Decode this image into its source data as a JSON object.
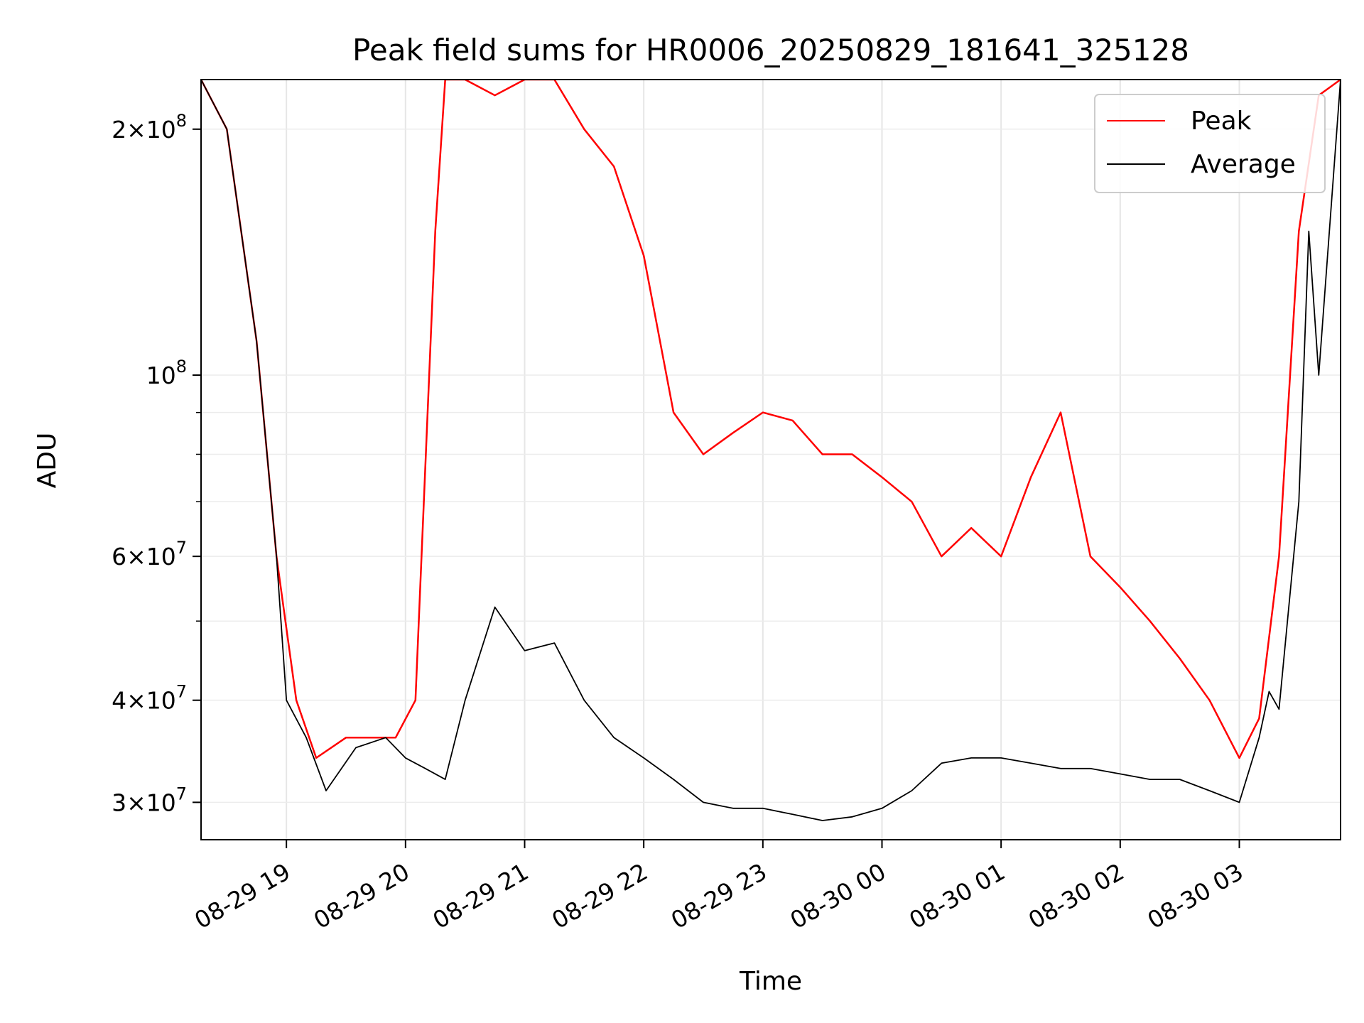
{
  "chart_data": {
    "type": "line",
    "title": "Peak field sums for HR0006_20250829_181641_325128",
    "xlabel": "Time",
    "ylabel": "ADU",
    "yscale": "log",
    "ylim": [
      27000000,
      230000000
    ],
    "xlim": [
      "2025-08-29 18:17",
      "2025-08-30 03:51"
    ],
    "grid": true,
    "legend_position": "top-right",
    "x_ticks": [
      "08-29 19",
      "08-29 20",
      "08-29 21",
      "08-29 22",
      "08-29 23",
      "08-30 00",
      "08-30 01",
      "08-30 02",
      "08-30 03"
    ],
    "y_ticks": [
      {
        "value": 30000000,
        "mantissa": "3",
        "exponent": "7"
      },
      {
        "value": 40000000,
        "mantissa": "4",
        "exponent": "7"
      },
      {
        "value": 60000000,
        "mantissa": "6",
        "exponent": "7"
      },
      {
        "value": 100000000,
        "mantissa": "",
        "exponent": "8"
      },
      {
        "value": 200000000,
        "mantissa": "2",
        "exponent": "8"
      }
    ],
    "series": [
      {
        "name": "Peak",
        "color": "#ff0000",
        "x": [
          "2025-08-29 18:17",
          "2025-08-29 18:30",
          "2025-08-29 18:45",
          "2025-08-29 18:55",
          "2025-08-29 19:05",
          "2025-08-29 19:15",
          "2025-08-29 19:30",
          "2025-08-29 19:45",
          "2025-08-29 19:55",
          "2025-08-29 20:05",
          "2025-08-29 20:15",
          "2025-08-29 20:20",
          "2025-08-29 20:30",
          "2025-08-29 20:45",
          "2025-08-29 21:00",
          "2025-08-29 21:15",
          "2025-08-29 21:30",
          "2025-08-29 21:45",
          "2025-08-29 22:00",
          "2025-08-29 22:15",
          "2025-08-29 22:30",
          "2025-08-29 22:45",
          "2025-08-29 23:00",
          "2025-08-29 23:15",
          "2025-08-29 23:30",
          "2025-08-29 23:45",
          "2025-08-30 00:00",
          "2025-08-30 00:15",
          "2025-08-30 00:30",
          "2025-08-30 00:45",
          "2025-08-30 01:00",
          "2025-08-30 01:15",
          "2025-08-30 01:30",
          "2025-08-30 01:45",
          "2025-08-30 02:00",
          "2025-08-30 02:15",
          "2025-08-30 02:30",
          "2025-08-30 02:45",
          "2025-08-30 03:00",
          "2025-08-30 03:10",
          "2025-08-30 03:20",
          "2025-08-30 03:30",
          "2025-08-30 03:40",
          "2025-08-30 03:51"
        ],
        "values": [
          230000000,
          200000000,
          110000000,
          60000000,
          40000000,
          34000000,
          36000000,
          36000000,
          36000000,
          40000000,
          150000000,
          230000000,
          230000000,
          220000000,
          230000000,
          230000000,
          200000000,
          180000000,
          140000000,
          90000000,
          80000000,
          85000000,
          90000000,
          88000000,
          80000000,
          80000000,
          75000000,
          70000000,
          60000000,
          65000000,
          60000000,
          75000000,
          90000000,
          60000000,
          55000000,
          50000000,
          45000000,
          40000000,
          34000000,
          38000000,
          60000000,
          150000000,
          220000000,
          230000000
        ]
      },
      {
        "name": "Average",
        "color": "#000000",
        "x": [
          "2025-08-29 18:17",
          "2025-08-29 18:30",
          "2025-08-29 18:45",
          "2025-08-29 18:55",
          "2025-08-29 19:00",
          "2025-08-29 19:10",
          "2025-08-29 19:20",
          "2025-08-29 19:35",
          "2025-08-29 19:50",
          "2025-08-29 20:00",
          "2025-08-29 20:10",
          "2025-08-29 20:20",
          "2025-08-29 20:30",
          "2025-08-29 20:45",
          "2025-08-29 21:00",
          "2025-08-29 21:15",
          "2025-08-29 21:30",
          "2025-08-29 21:45",
          "2025-08-29 22:00",
          "2025-08-29 22:15",
          "2025-08-29 22:30",
          "2025-08-29 22:45",
          "2025-08-29 23:00",
          "2025-08-29 23:15",
          "2025-08-29 23:30",
          "2025-08-29 23:45",
          "2025-08-30 00:00",
          "2025-08-30 00:15",
          "2025-08-30 00:30",
          "2025-08-30 00:45",
          "2025-08-30 01:00",
          "2025-08-30 01:15",
          "2025-08-30 01:30",
          "2025-08-30 01:45",
          "2025-08-30 02:00",
          "2025-08-30 02:15",
          "2025-08-30 02:30",
          "2025-08-30 02:45",
          "2025-08-30 03:00",
          "2025-08-30 03:10",
          "2025-08-30 03:15",
          "2025-08-30 03:20",
          "2025-08-30 03:30",
          "2025-08-30 03:35",
          "2025-08-30 03:40",
          "2025-08-30 03:51"
        ],
        "values": [
          230000000,
          200000000,
          110000000,
          60000000,
          40000000,
          36000000,
          31000000,
          35000000,
          36000000,
          34000000,
          33000000,
          32000000,
          40000000,
          52000000,
          46000000,
          47000000,
          40000000,
          36000000,
          34000000,
          32000000,
          30000000,
          29500000,
          29500000,
          29000000,
          28500000,
          28800000,
          29500000,
          31000000,
          33500000,
          34000000,
          34000000,
          33500000,
          33000000,
          33000000,
          32500000,
          32000000,
          32000000,
          31000000,
          30000000,
          36000000,
          41000000,
          39000000,
          70000000,
          150000000,
          100000000,
          230000000
        ]
      }
    ]
  }
}
